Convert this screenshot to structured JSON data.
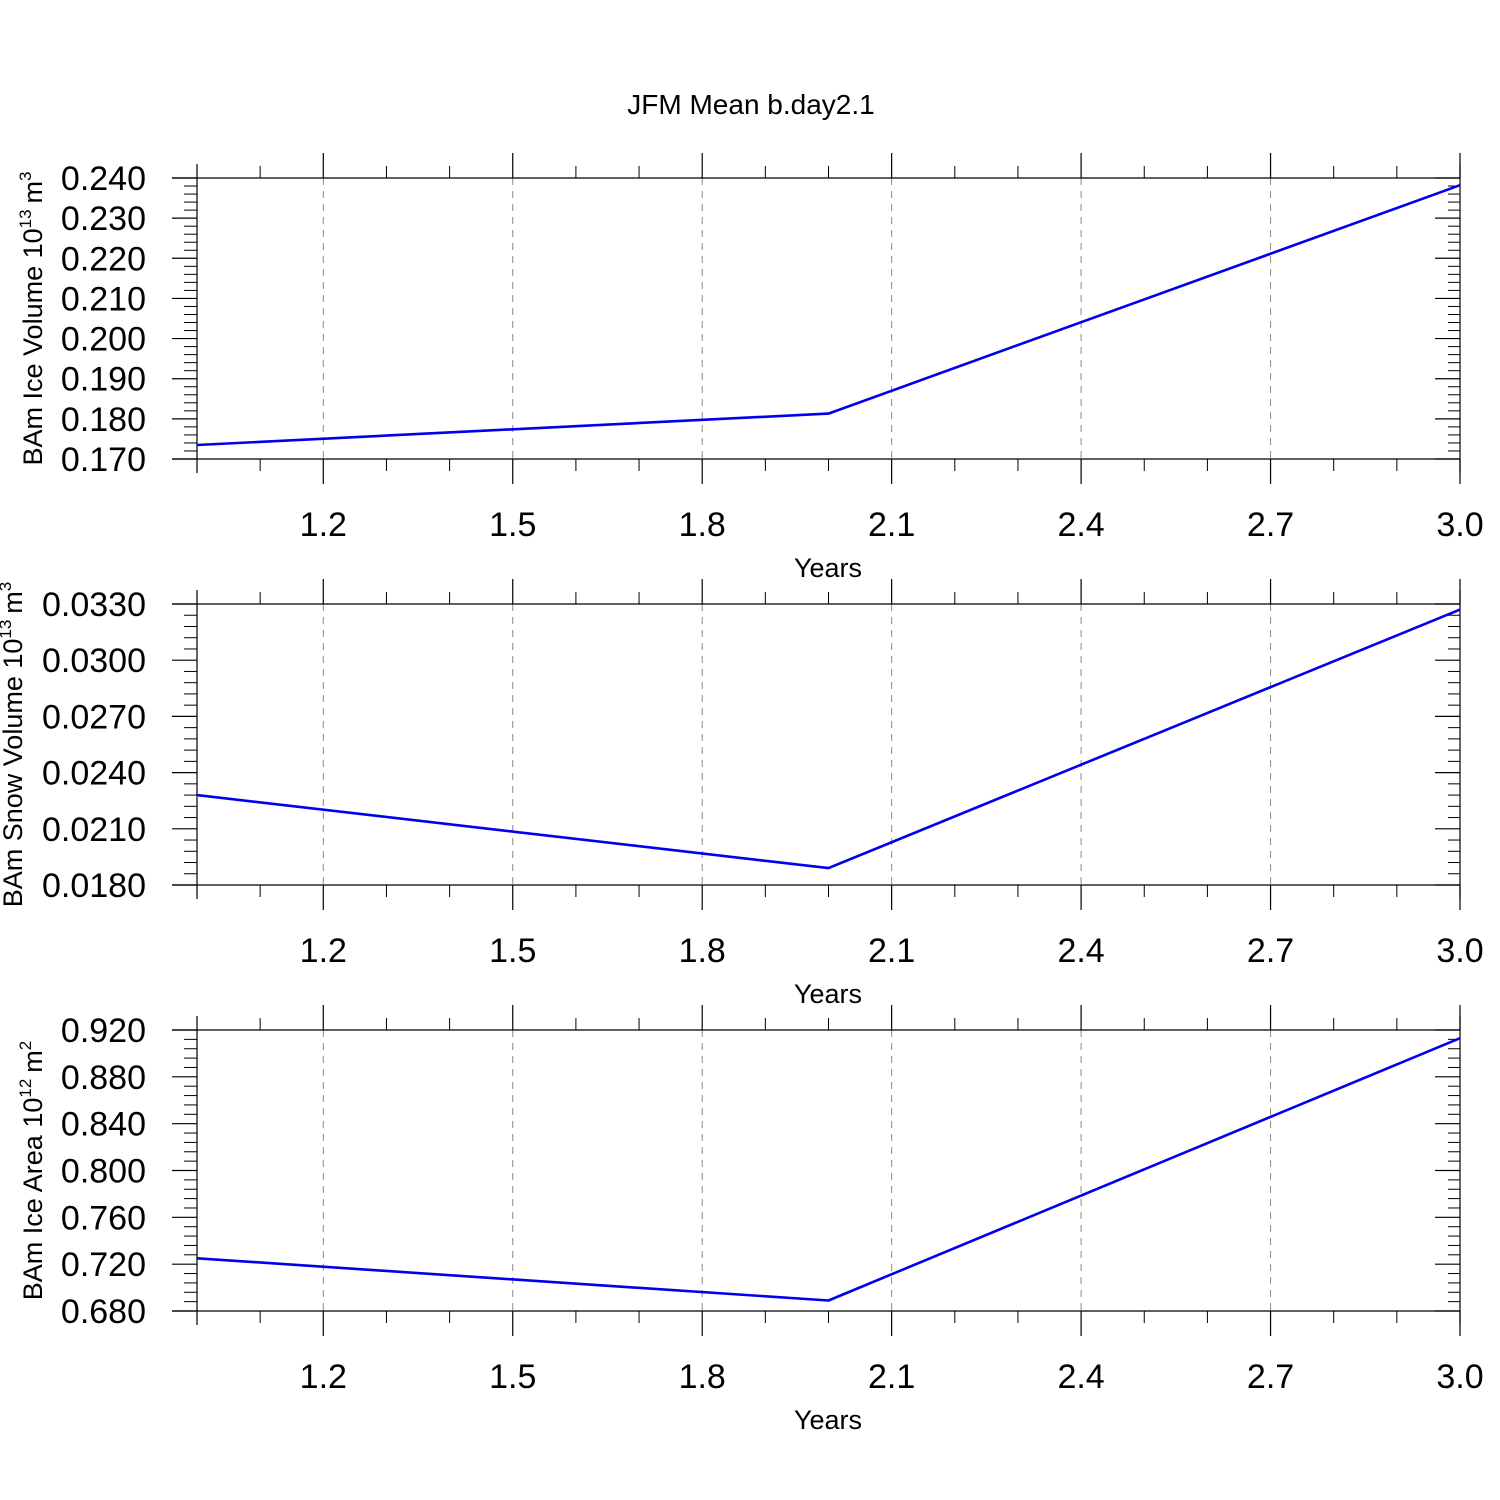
{
  "figure": {
    "title": "JFM Mean b.day2.1",
    "line_color": "#0000ee"
  },
  "chart_data": [
    {
      "type": "line",
      "title": "JFM Mean b.day2.1",
      "xlabel": "Years",
      "ylabel_text": "BAm Ice Volume 10",
      "ylabel_exp": "13",
      "ylabel_unit": "m",
      "ylabel_unit_exp": "3",
      "x": [
        1,
        2,
        3
      ],
      "y": [
        0.1735,
        0.1813,
        0.2382
      ],
      "xlim": [
        1,
        3
      ],
      "ylim": [
        0.17,
        0.24
      ],
      "xticks": [
        1.2,
        1.5,
        1.8,
        2.1,
        2.4,
        2.7,
        3.0
      ],
      "xtick_labels": [
        "1.2",
        "1.5",
        "1.8",
        "2.1",
        "2.4",
        "2.7",
        "3.0"
      ],
      "yticks": [
        0.17,
        0.18,
        0.19,
        0.2,
        0.21,
        0.22,
        0.23,
        0.24
      ],
      "ytick_labels": [
        "0.170",
        "0.180",
        "0.190",
        "0.200",
        "0.210",
        "0.220",
        "0.230",
        "0.240"
      ],
      "y_minor_step": 0.002,
      "x_minor_step": 0.1,
      "grid": "vertical dashed at major x ticks"
    },
    {
      "type": "line",
      "xlabel": "Years",
      "ylabel_text": "BAm Snow Volume 10",
      "ylabel_exp": "13",
      "ylabel_unit": "m",
      "ylabel_unit_exp": "3",
      "x": [
        1,
        2,
        3
      ],
      "y": [
        0.0228,
        0.0189,
        0.0327
      ],
      "xlim": [
        1,
        3
      ],
      "ylim": [
        0.018,
        0.033
      ],
      "xticks": [
        1.2,
        1.5,
        1.8,
        2.1,
        2.4,
        2.7,
        3.0
      ],
      "xtick_labels": [
        "1.2",
        "1.5",
        "1.8",
        "2.1",
        "2.4",
        "2.7",
        "3.0"
      ],
      "yticks": [
        0.018,
        0.021,
        0.024,
        0.027,
        0.03,
        0.033
      ],
      "ytick_labels": [
        "0.0180",
        "0.0210",
        "0.0240",
        "0.0270",
        "0.0300",
        "0.0330"
      ],
      "y_minor_step": 0.0006,
      "x_minor_step": 0.1,
      "grid": "vertical dashed at major x ticks"
    },
    {
      "type": "line",
      "xlabel": "Years",
      "ylabel_text": "BAm Ice Area 10",
      "ylabel_exp": "12",
      "ylabel_unit": "m",
      "ylabel_unit_exp": "2",
      "x": [
        1,
        2,
        3
      ],
      "y": [
        0.725,
        0.689,
        0.913
      ],
      "xlim": [
        1,
        3
      ],
      "ylim": [
        0.68,
        0.92
      ],
      "xticks": [
        1.2,
        1.5,
        1.8,
        2.1,
        2.4,
        2.7,
        3.0
      ],
      "xtick_labels": [
        "1.2",
        "1.5",
        "1.8",
        "2.1",
        "2.4",
        "2.7",
        "3.0"
      ],
      "yticks": [
        0.68,
        0.72,
        0.76,
        0.8,
        0.84,
        0.88,
        0.92
      ],
      "ytick_labels": [
        "0.680",
        "0.720",
        "0.760",
        "0.800",
        "0.840",
        "0.880",
        "0.920"
      ],
      "y_minor_step": 0.008,
      "x_minor_step": 0.1,
      "grid": "vertical dashed at major x ticks"
    }
  ]
}
